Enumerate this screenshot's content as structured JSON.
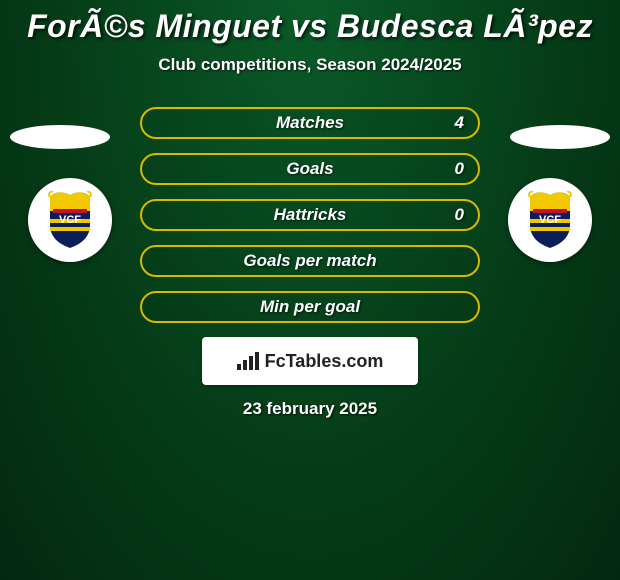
{
  "title": "ForÃ©s Minguet vs Budesca LÃ³pez",
  "subtitle": "Club competitions, Season 2024/2025",
  "stats": [
    {
      "label": "Matches",
      "value": "4",
      "border_color": "#d8b800"
    },
    {
      "label": "Goals",
      "value": "0",
      "border_color": "#d8b800"
    },
    {
      "label": "Hattricks",
      "value": "0",
      "border_color": "#d8b800"
    },
    {
      "label": "Goals per match",
      "value": "",
      "border_color": "#d8b800"
    },
    {
      "label": "Min per goal",
      "value": "",
      "border_color": "#d8b800"
    }
  ],
  "watermark_text": "FcTables.com",
  "date_text": "23 february 2025",
  "crest": {
    "bg": "#ffffff",
    "shield_yellow": "#f2c800",
    "shield_blue": "#0a1e5a",
    "shield_red": "#c8102e",
    "letters": "VCF"
  },
  "colors": {
    "background_center": "#0a5a28",
    "background_edge": "#053b17",
    "text": "#ffffff"
  }
}
